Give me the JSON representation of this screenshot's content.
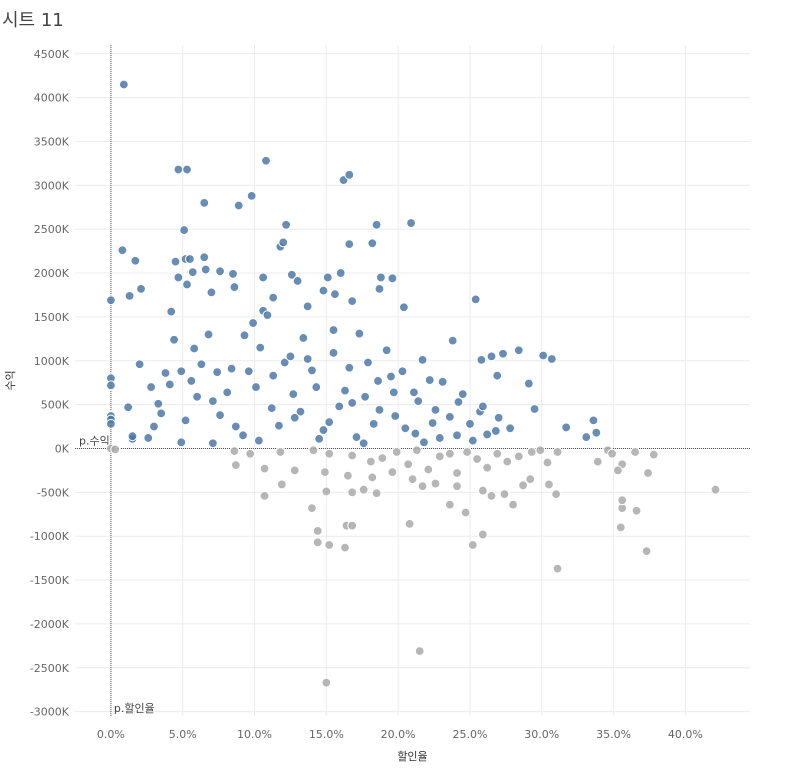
{
  "sheet_title": "시트 11",
  "colors": {
    "positive": "#4e79a7",
    "negative": "#a9a9a9",
    "grid": "#ececec",
    "refline": "#555555"
  },
  "chart_data": {
    "type": "scatter",
    "xlabel": "할인율",
    "ylabel": "수익",
    "xlim": [
      -0.025,
      0.445
    ],
    "ylim": [
      -3050,
      4600
    ],
    "x_ticks": [
      0.0,
      0.05,
      0.1,
      0.15,
      0.2,
      0.25,
      0.3,
      0.35,
      0.4
    ],
    "x_tick_labels": [
      "0.0%",
      "5.0%",
      "10.0%",
      "15.0%",
      "20.0%",
      "25.0%",
      "30.0%",
      "35.0%",
      "40.0%"
    ],
    "y_ticks": [
      4500,
      4000,
      3500,
      3000,
      2500,
      2000,
      1500,
      1000,
      500,
      0,
      -500,
      -1000,
      -1500,
      -2000,
      -2500,
      -3000
    ],
    "y_tick_labels": [
      "4500K",
      "4000K",
      "3500K",
      "3000K",
      "2500K",
      "2000K",
      "1500K",
      "1000K",
      "500K",
      "0K",
      "-500K",
      "-1000K",
      "-1500K",
      "-2000K",
      "-2500K",
      "-3000K"
    ],
    "y_unit": "K",
    "grid": true,
    "reference_lines": [
      {
        "axis": "y",
        "value": 0,
        "label": "p.수익"
      },
      {
        "axis": "x",
        "value": 0,
        "label": "p.할인율"
      }
    ],
    "color_rule": "blue when 수익 > 0, gray when 수익 < 0",
    "points": [
      [
        0.009,
        4150
      ],
      [
        0.047,
        3180
      ],
      [
        0.053,
        3180
      ],
      [
        0.108,
        3280
      ],
      [
        0.162,
        3060
      ],
      [
        0.166,
        3120
      ],
      [
        0.098,
        2880
      ],
      [
        0.089,
        2770
      ],
      [
        0.065,
        2800
      ],
      [
        0.122,
        2550
      ],
      [
        0.209,
        2570
      ],
      [
        0.185,
        2550
      ],
      [
        0.166,
        2330
      ],
      [
        0.182,
        2340
      ],
      [
        0.118,
        2300
      ],
      [
        0.12,
        2350
      ],
      [
        0.051,
        2490
      ],
      [
        0.008,
        2260
      ],
      [
        0.017,
        2140
      ],
      [
        0.045,
        2130
      ],
      [
        0.052,
        2160
      ],
      [
        0.055,
        2160
      ],
      [
        0.065,
        2180
      ],
      [
        0.076,
        2020
      ],
      [
        0.085,
        1990
      ],
      [
        0.106,
        1950
      ],
      [
        0.126,
        1980
      ],
      [
        0.13,
        1910
      ],
      [
        0.151,
        1950
      ],
      [
        0.16,
        2000
      ],
      [
        0.188,
        1950
      ],
      [
        0.196,
        1940
      ],
      [
        0.047,
        1950
      ],
      [
        0.057,
        2010
      ],
      [
        0.066,
        2040
      ],
      [
        0.187,
        1820
      ],
      [
        0.254,
        1700
      ],
      [
        0.0,
        1690
      ],
      [
        0.013,
        1740
      ],
      [
        0.021,
        1820
      ],
      [
        0.042,
        1560
      ],
      [
        0.053,
        1870
      ],
      [
        0.07,
        1780
      ],
      [
        0.086,
        1840
      ],
      [
        0.106,
        1570
      ],
      [
        0.113,
        1720
      ],
      [
        0.137,
        1620
      ],
      [
        0.148,
        1800
      ],
      [
        0.156,
        1760
      ],
      [
        0.168,
        1680
      ],
      [
        0.204,
        1610
      ],
      [
        0.238,
        1230
      ],
      [
        0.258,
        1010
      ],
      [
        0.265,
        1050
      ],
      [
        0.273,
        1080
      ],
      [
        0.284,
        1120
      ],
      [
        0.301,
        1060
      ],
      [
        0.307,
        1020
      ],
      [
        0.269,
        830
      ],
      [
        0.291,
        740
      ],
      [
        0.295,
        450
      ],
      [
        0.317,
        240
      ],
      [
        0.331,
        130
      ],
      [
        0.336,
        320
      ],
      [
        0.338,
        180
      ],
      [
        0.0,
        800
      ],
      [
        0.0,
        720
      ],
      [
        0.0,
        370
      ],
      [
        0.0,
        330
      ],
      [
        0.0,
        280
      ],
      [
        0.0,
        0
      ],
      [
        0.012,
        470
      ],
      [
        0.015,
        110
      ],
      [
        0.015,
        140
      ],
      [
        0.026,
        120
      ],
      [
        0.033,
        510
      ],
      [
        0.041,
        730
      ],
      [
        0.049,
        880
      ],
      [
        0.058,
        1140
      ],
      [
        0.063,
        960
      ],
      [
        0.074,
        870
      ],
      [
        0.081,
        640
      ],
      [
        0.093,
        1290
      ],
      [
        0.099,
        1430
      ],
      [
        0.104,
        1150
      ],
      [
        0.113,
        830
      ],
      [
        0.121,
        980
      ],
      [
        0.127,
        620
      ],
      [
        0.134,
        1260
      ],
      [
        0.143,
        700
      ],
      [
        0.155,
        1090
      ],
      [
        0.159,
        480
      ],
      [
        0.166,
        920
      ],
      [
        0.173,
        1310
      ],
      [
        0.177,
        590
      ],
      [
        0.186,
        770
      ],
      [
        0.192,
        1120
      ],
      [
        0.198,
        370
      ],
      [
        0.203,
        880
      ],
      [
        0.211,
        640
      ],
      [
        0.217,
        1010
      ],
      [
        0.224,
        290
      ],
      [
        0.231,
        760
      ],
      [
        0.242,
        530
      ],
      [
        0.25,
        280
      ],
      [
        0.257,
        420
      ],
      [
        0.262,
        160
      ],
      [
        0.27,
        350
      ],
      [
        0.278,
        230
      ],
      [
        0.02,
        960
      ],
      [
        0.028,
        700
      ],
      [
        0.035,
        400
      ],
      [
        0.044,
        1240
      ],
      [
        0.052,
        320
      ],
      [
        0.06,
        590
      ],
      [
        0.068,
        1300
      ],
      [
        0.076,
        380
      ],
      [
        0.084,
        910
      ],
      [
        0.092,
        150
      ],
      [
        0.101,
        700
      ],
      [
        0.109,
        1520
      ],
      [
        0.117,
        260
      ],
      [
        0.125,
        1050
      ],
      [
        0.132,
        420
      ],
      [
        0.14,
        890
      ],
      [
        0.148,
        210
      ],
      [
        0.155,
        1350
      ],
      [
        0.163,
        660
      ],
      [
        0.171,
        130
      ],
      [
        0.179,
        980
      ],
      [
        0.187,
        440
      ],
      [
        0.195,
        820
      ],
      [
        0.205,
        230
      ],
      [
        0.214,
        540
      ],
      [
        0.222,
        780
      ],
      [
        0.229,
        120
      ],
      [
        0.236,
        360
      ],
      [
        0.245,
        620
      ],
      [
        0.252,
        90
      ],
      [
        0.259,
        480
      ],
      [
        0.268,
        200
      ],
      [
        0.03,
        250
      ],
      [
        0.038,
        860
      ],
      [
        0.056,
        770
      ],
      [
        0.071,
        540
      ],
      [
        0.087,
        250
      ],
      [
        0.096,
        880
      ],
      [
        0.112,
        460
      ],
      [
        0.128,
        350
      ],
      [
        0.137,
        1020
      ],
      [
        0.152,
        300
      ],
      [
        0.168,
        520
      ],
      [
        0.183,
        280
      ],
      [
        0.197,
        640
      ],
      [
        0.212,
        170
      ],
      [
        0.226,
        440
      ],
      [
        0.241,
        150
      ],
      [
        0.071,
        60
      ],
      [
        0.103,
        90
      ],
      [
        0.145,
        110
      ],
      [
        0.176,
        60
      ],
      [
        0.218,
        70
      ],
      [
        0.049,
        70
      ],
      [
        0.003,
        -10
      ],
      [
        0.086,
        -30
      ],
      [
        0.097,
        -60
      ],
      [
        0.118,
        -40
      ],
      [
        0.141,
        -20
      ],
      [
        0.152,
        -60
      ],
      [
        0.168,
        -80
      ],
      [
        0.181,
        -150
      ],
      [
        0.189,
        -110
      ],
      [
        0.199,
        -40
      ],
      [
        0.207,
        -180
      ],
      [
        0.213,
        -20
      ],
      [
        0.221,
        -240
      ],
      [
        0.229,
        -90
      ],
      [
        0.236,
        -60
      ],
      [
        0.241,
        -280
      ],
      [
        0.248,
        -40
      ],
      [
        0.255,
        -120
      ],
      [
        0.262,
        -220
      ],
      [
        0.269,
        -60
      ],
      [
        0.276,
        -150
      ],
      [
        0.284,
        -90
      ],
      [
        0.293,
        -40
      ],
      [
        0.299,
        -20
      ],
      [
        0.304,
        -160
      ],
      [
        0.311,
        -40
      ],
      [
        0.346,
        -20
      ],
      [
        0.349,
        -60
      ],
      [
        0.356,
        -180
      ],
      [
        0.365,
        -40
      ],
      [
        0.378,
        -70
      ],
      [
        0.087,
        -190
      ],
      [
        0.107,
        -230
      ],
      [
        0.128,
        -250
      ],
      [
        0.149,
        -270
      ],
      [
        0.165,
        -310
      ],
      [
        0.182,
        -330
      ],
      [
        0.196,
        -270
      ],
      [
        0.21,
        -350
      ],
      [
        0.226,
        -400
      ],
      [
        0.241,
        -430
      ],
      [
        0.259,
        -480
      ],
      [
        0.274,
        -520
      ],
      [
        0.292,
        -350
      ],
      [
        0.305,
        -410
      ],
      [
        0.339,
        -150
      ],
      [
        0.353,
        -250
      ],
      [
        0.374,
        -280
      ],
      [
        0.421,
        -470
      ],
      [
        0.107,
        -540
      ],
      [
        0.119,
        -410
      ],
      [
        0.14,
        -680
      ],
      [
        0.15,
        -490
      ],
      [
        0.168,
        -500
      ],
      [
        0.176,
        -470
      ],
      [
        0.185,
        -510
      ],
      [
        0.208,
        -860
      ],
      [
        0.217,
        -430
      ],
      [
        0.236,
        -640
      ],
      [
        0.247,
        -730
      ],
      [
        0.252,
        -1100
      ],
      [
        0.259,
        -980
      ],
      [
        0.265,
        -540
      ],
      [
        0.28,
        -640
      ],
      [
        0.287,
        -420
      ],
      [
        0.31,
        -520
      ],
      [
        0.356,
        -680
      ],
      [
        0.356,
        -590
      ],
      [
        0.355,
        -900
      ],
      [
        0.366,
        -710
      ],
      [
        0.373,
        -1170
      ],
      [
        0.144,
        -940
      ],
      [
        0.144,
        -1070
      ],
      [
        0.152,
        -1100
      ],
      [
        0.163,
        -1130
      ],
      [
        0.164,
        -880
      ],
      [
        0.168,
        -880
      ],
      [
        0.311,
        -1370
      ],
      [
        0.215,
        -2310
      ],
      [
        0.15,
        -2670
      ]
    ]
  }
}
